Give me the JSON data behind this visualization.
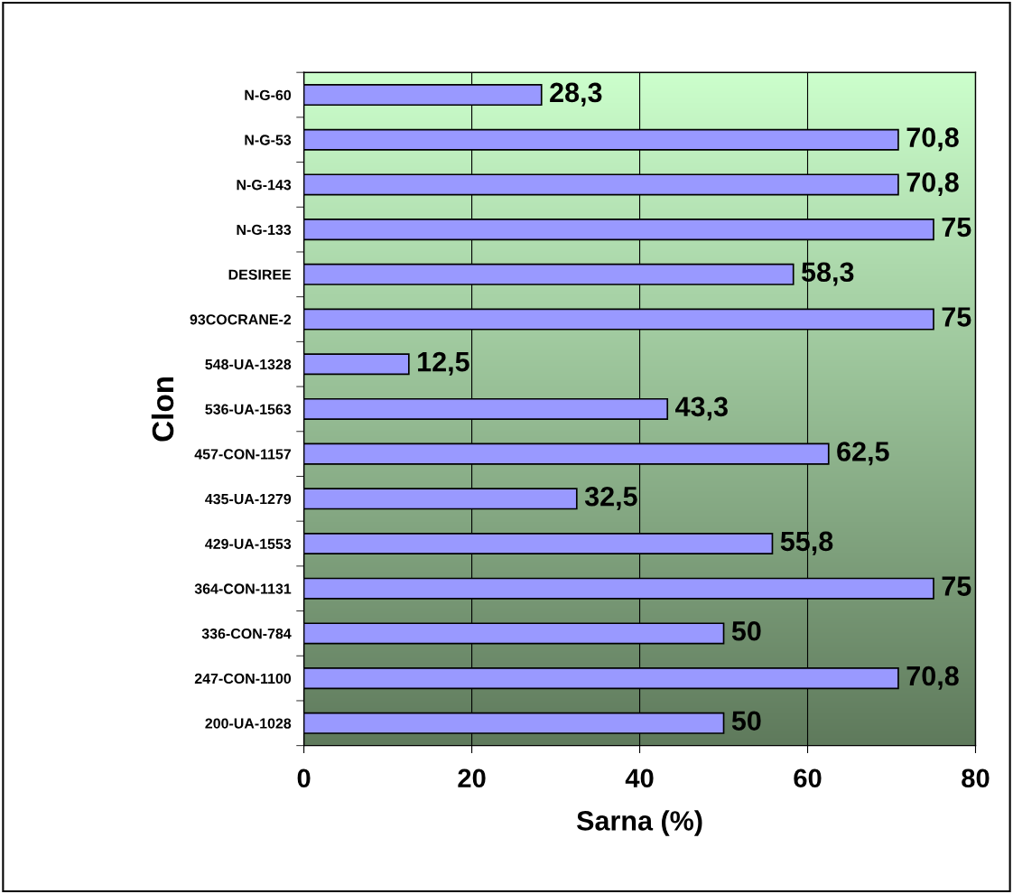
{
  "chart_data": {
    "type": "bar",
    "orientation": "horizontal",
    "categories": [
      "N-G-60",
      "N-G-53",
      "N-G-143",
      "N-G-133",
      "DESIREE",
      "93COCRANE-2",
      "548-UA-1328",
      "536-UA-1563",
      "457-CON-1157",
      "435-UA-1279",
      "429-UA-1553",
      "364-CON-1131",
      "336-CON-784",
      "247-CON-1100",
      "200-UA-1028"
    ],
    "values": [
      28.3,
      70.8,
      70.8,
      75,
      58.3,
      75,
      12.5,
      43.3,
      62.5,
      32.5,
      55.8,
      75,
      50,
      70.8,
      50
    ],
    "value_labels": [
      "28,3",
      "70,8",
      "70,8",
      "75",
      "58,3",
      "75",
      "12,5",
      "43,3",
      "62,5",
      "32,5",
      "55,8",
      "75",
      "50",
      "70,8",
      "50"
    ],
    "color": "#9999ff",
    "xlabel": "Sarna (%)",
    "ylabel": "Clon",
    "xlim": [
      0,
      80
    ],
    "xticks": [
      0,
      20,
      40,
      60,
      80
    ],
    "grid": "x",
    "legend": false
  }
}
